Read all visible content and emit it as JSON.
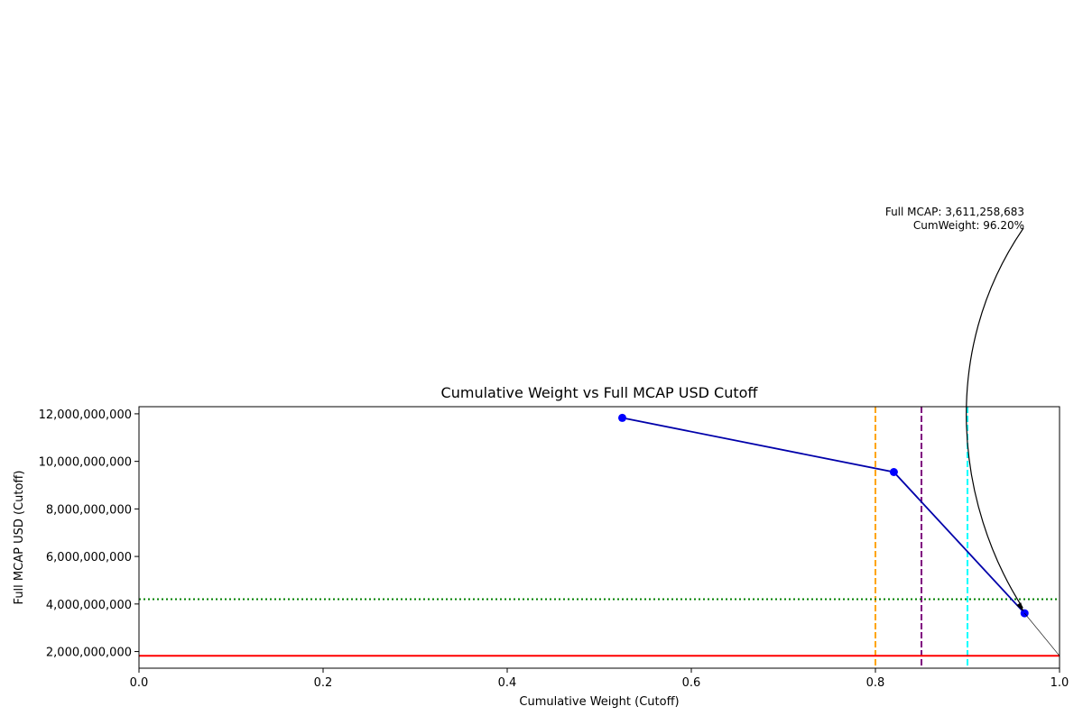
{
  "chart_data": {
    "type": "line",
    "title": "Cumulative Weight vs Full MCAP USD Cutoff",
    "xlabel": "Cumulative Weight (Cutoff)",
    "ylabel": "Full MCAP USD (Cutoff)",
    "xlim": [
      0.0,
      1.0
    ],
    "ylim": [
      1300000000,
      12300000000
    ],
    "grid": false,
    "x_ticks": [
      0.0,
      0.2,
      0.4,
      0.6,
      0.8,
      1.0
    ],
    "x_tick_labels": [
      "0.0",
      "0.2",
      "0.4",
      "0.6",
      "0.8",
      "1.0"
    ],
    "y_ticks": [
      2000000000,
      4000000000,
      6000000000,
      8000000000,
      10000000000,
      12000000000
    ],
    "y_tick_labels": [
      "2,000,000,000",
      "4,000,000,000",
      "6,000,000,000",
      "8,000,000,000",
      "10,000,000,000",
      "12,000,000,000"
    ],
    "series": [
      {
        "color": "#0000aa",
        "marker_color": "#0000ff",
        "points": [
          {
            "x": 0.525,
            "y": 11830000000
          },
          {
            "x": 0.82,
            "y": 9550000000
          },
          {
            "x": 0.962,
            "y": 3611258683
          }
        ]
      }
    ],
    "vertical_lines": [
      {
        "x": 0.8,
        "color": "#ffa500",
        "style": "dashed"
      },
      {
        "x": 0.85,
        "color": "#800080",
        "style": "dashed"
      },
      {
        "x": 0.9,
        "color": "#00ffff",
        "style": "dashed"
      }
    ],
    "horizontal_lines": [
      {
        "y": 4200000000,
        "color": "#008000",
        "style": "dotted"
      },
      {
        "y": 1820000000,
        "color": "#ff0000",
        "style": "solid"
      }
    ],
    "annotation": {
      "lines": [
        "Full MCAP: 3,611,258,683",
        "CumWeight: 96.20%"
      ],
      "point": {
        "x": 0.962,
        "y": 3611258683
      },
      "thin_line_to": {
        "x": 1.0,
        "y": 1820000000
      }
    }
  }
}
